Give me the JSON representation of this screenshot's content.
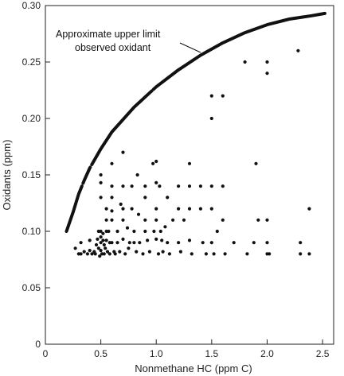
{
  "chart_data": {
    "type": "scatter",
    "title": "",
    "xlabel": "Nonmethane HC (ppm C)",
    "ylabel": "Oxidants (ppm)",
    "xlim": [
      0,
      2.6
    ],
    "ylim": [
      0,
      0.3
    ],
    "xticks": [
      "0",
      "0.5",
      "1.0",
      "1.5",
      "2.0",
      "2.5"
    ],
    "xtick_values": [
      0,
      0.5,
      1.0,
      1.5,
      2.0,
      2.5
    ],
    "yticks": [
      "0",
      "0.05",
      "0.10",
      "0.15",
      "0.20",
      "0.25",
      "0.30"
    ],
    "ytick_values": [
      0,
      0.05,
      0.1,
      0.15,
      0.2,
      0.25,
      0.3
    ],
    "grid": false,
    "annotation": {
      "line1": "Approximate upper limit",
      "line2": "observed oxidant"
    },
    "upper_limit_curve": {
      "x": [
        0.19,
        0.25,
        0.3,
        0.35,
        0.4,
        0.5,
        0.6,
        0.8,
        1.0,
        1.2,
        1.4,
        1.6,
        1.8,
        2.0,
        2.2,
        2.4,
        2.52
      ],
      "y": [
        0.1,
        0.117,
        0.133,
        0.145,
        0.156,
        0.173,
        0.188,
        0.21,
        0.228,
        0.243,
        0.256,
        0.267,
        0.276,
        0.283,
        0.288,
        0.291,
        0.293
      ]
    },
    "points": [
      [
        0.27,
        0.085
      ],
      [
        0.3,
        0.08
      ],
      [
        0.32,
        0.09
      ],
      [
        0.32,
        0.08
      ],
      [
        0.35,
        0.082
      ],
      [
        0.38,
        0.08
      ],
      [
        0.4,
        0.092
      ],
      [
        0.4,
        0.083
      ],
      [
        0.42,
        0.08
      ],
      [
        0.44,
        0.082
      ],
      [
        0.45,
        0.08
      ],
      [
        0.46,
        0.088
      ],
      [
        0.47,
        0.093
      ],
      [
        0.48,
        0.1
      ],
      [
        0.48,
        0.085
      ],
      [
        0.49,
        0.078
      ],
      [
        0.5,
        0.15
      ],
      [
        0.5,
        0.143
      ],
      [
        0.5,
        0.13
      ],
      [
        0.5,
        0.1
      ],
      [
        0.5,
        0.095
      ],
      [
        0.5,
        0.09
      ],
      [
        0.5,
        0.083
      ],
      [
        0.51,
        0.08
      ],
      [
        0.52,
        0.098
      ],
      [
        0.52,
        0.092
      ],
      [
        0.53,
        0.088
      ],
      [
        0.53,
        0.08
      ],
      [
        0.54,
        0.085
      ],
      [
        0.55,
        0.12
      ],
      [
        0.55,
        0.11
      ],
      [
        0.55,
        0.1
      ],
      [
        0.55,
        0.092
      ],
      [
        0.56,
        0.082
      ],
      [
        0.57,
        0.1
      ],
      [
        0.58,
        0.09
      ],
      [
        0.58,
        0.08
      ],
      [
        0.6,
        0.16
      ],
      [
        0.6,
        0.14
      ],
      [
        0.6,
        0.13
      ],
      [
        0.6,
        0.118
      ],
      [
        0.6,
        0.11
      ],
      [
        0.6,
        0.09
      ],
      [
        0.62,
        0.082
      ],
      [
        0.63,
        0.08
      ],
      [
        0.65,
        0.1
      ],
      [
        0.65,
        0.09
      ],
      [
        0.67,
        0.082
      ],
      [
        0.68,
        0.124
      ],
      [
        0.7,
        0.17
      ],
      [
        0.7,
        0.14
      ],
      [
        0.7,
        0.12
      ],
      [
        0.7,
        0.11
      ],
      [
        0.7,
        0.093
      ],
      [
        0.72,
        0.08
      ],
      [
        0.74,
        0.103
      ],
      [
        0.75,
        0.085
      ],
      [
        0.76,
        0.09
      ],
      [
        0.78,
        0.14
      ],
      [
        0.78,
        0.12
      ],
      [
        0.8,
        0.1
      ],
      [
        0.8,
        0.09
      ],
      [
        0.82,
        0.082
      ],
      [
        0.83,
        0.15
      ],
      [
        0.84,
        0.115
      ],
      [
        0.85,
        0.09
      ],
      [
        0.88,
        0.08
      ],
      [
        0.9,
        0.14
      ],
      [
        0.9,
        0.13
      ],
      [
        0.9,
        0.11
      ],
      [
        0.9,
        0.1
      ],
      [
        0.92,
        0.092
      ],
      [
        0.94,
        0.082
      ],
      [
        0.97,
        0.16
      ],
      [
        0.98,
        0.1
      ],
      [
        1.0,
        0.162
      ],
      [
        1.0,
        0.143
      ],
      [
        1.0,
        0.12
      ],
      [
        1.0,
        0.11
      ],
      [
        1.0,
        0.093
      ],
      [
        1.02,
        0.08
      ],
      [
        1.03,
        0.14
      ],
      [
        1.04,
        0.1
      ],
      [
        1.05,
        0.092
      ],
      [
        1.06,
        0.082
      ],
      [
        1.08,
        0.104
      ],
      [
        1.1,
        0.13
      ],
      [
        1.1,
        0.09
      ],
      [
        1.12,
        0.08
      ],
      [
        1.15,
        0.11
      ],
      [
        1.2,
        0.14
      ],
      [
        1.2,
        0.12
      ],
      [
        1.2,
        0.09
      ],
      [
        1.22,
        0.082
      ],
      [
        1.25,
        0.11
      ],
      [
        1.3,
        0.16
      ],
      [
        1.3,
        0.14
      ],
      [
        1.3,
        0.12
      ],
      [
        1.3,
        0.092
      ],
      [
        1.32,
        0.08
      ],
      [
        1.4,
        0.14
      ],
      [
        1.4,
        0.12
      ],
      [
        1.42,
        0.09
      ],
      [
        1.45,
        0.08
      ],
      [
        1.5,
        0.22
      ],
      [
        1.5,
        0.2
      ],
      [
        1.5,
        0.14
      ],
      [
        1.5,
        0.12
      ],
      [
        1.5,
        0.09
      ],
      [
        1.52,
        0.08
      ],
      [
        1.55,
        0.1
      ],
      [
        1.6,
        0.22
      ],
      [
        1.6,
        0.14
      ],
      [
        1.6,
        0.11
      ],
      [
        1.62,
        0.08
      ],
      [
        1.7,
        0.09
      ],
      [
        1.8,
        0.25
      ],
      [
        1.82,
        0.08
      ],
      [
        1.88,
        0.09
      ],
      [
        1.9,
        0.16
      ],
      [
        1.92,
        0.11
      ],
      [
        2.0,
        0.25
      ],
      [
        2.0,
        0.24
      ],
      [
        2.0,
        0.11
      ],
      [
        2.0,
        0.09
      ],
      [
        2.0,
        0.08
      ],
      [
        2.02,
        0.08
      ],
      [
        2.28,
        0.26
      ],
      [
        2.3,
        0.09
      ],
      [
        2.3,
        0.08
      ],
      [
        2.38,
        0.12
      ],
      [
        2.38,
        0.08
      ]
    ]
  }
}
